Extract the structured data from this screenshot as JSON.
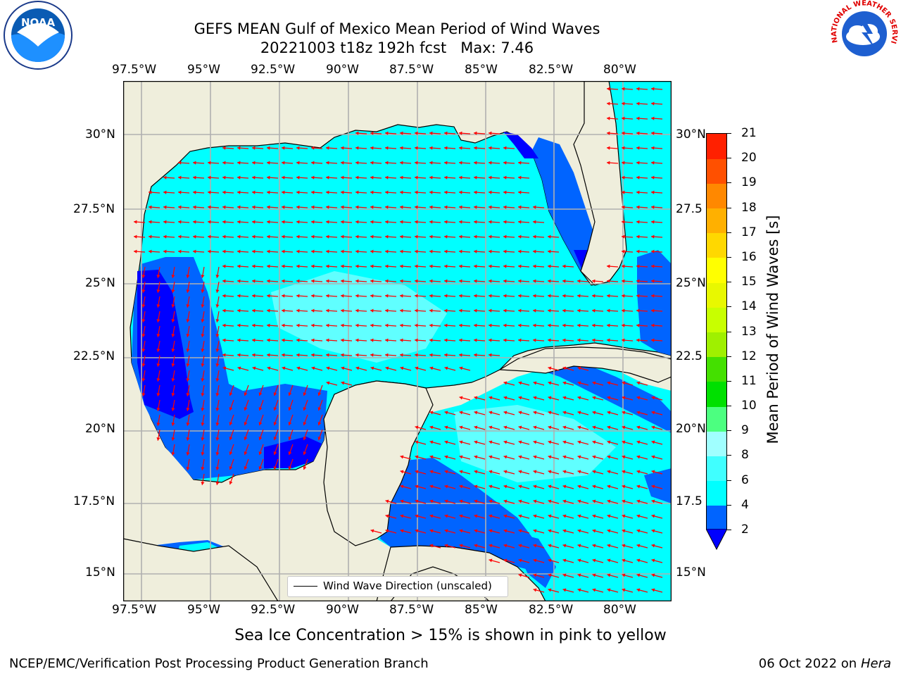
{
  "header": {
    "title_line1": "GEFS MEAN Gulf of Mexico Mean Period of Wind Waves",
    "title_line2": "20221003 t18z 192h fcst   Max: 7.46"
  },
  "logos": {
    "left": "NOAA",
    "right": "NATIONAL WEATHER SERVICE"
  },
  "map": {
    "lon_ticks_top": [
      "97.5°W",
      "95°W",
      "92.5°W",
      "90°W",
      "87.5°W",
      "85°W",
      "82.5°W",
      "80°W"
    ],
    "lon_ticks_bottom": [
      "97.5°W",
      "95°W",
      "92.5°W",
      "90°W",
      "87.5°W",
      "85°W",
      "82.5°W",
      "80°W"
    ],
    "lat_ticks_left": [
      "30°N",
      "27.5°N",
      "25°N",
      "22.5°N",
      "20°N",
      "17.5°N",
      "15°N"
    ],
    "lat_ticks_right": [
      "30°N",
      "27.5",
      "25°N",
      "22.5",
      "20°N",
      "17.5",
      "15°N"
    ],
    "legend_label": "Wind Wave Direction (unscaled)",
    "arrow_color": "#ff0000",
    "land_color": "#efeedc",
    "ocean_color": "#00ffff"
  },
  "colorbar": {
    "label": "Mean Period of Wind Waves [s]",
    "levels": [
      "2",
      "4",
      "6",
      "8",
      "9",
      "10",
      "11",
      "12",
      "13",
      "14",
      "15",
      "16",
      "17",
      "18",
      "19",
      "20",
      "21"
    ],
    "colors": [
      "#0064ff",
      "#00ffff",
      "#40ffff",
      "#a0ffff",
      "#4cff80",
      "#00e000",
      "#44e000",
      "#9ff000",
      "#c8ff00",
      "#e8f800",
      "#ffff00",
      "#ffd800",
      "#ffb000",
      "#ff8800",
      "#ff5000",
      "#ff2000"
    ],
    "extend_color": "#0000ff"
  },
  "footer": {
    "note": "Sea Ice Concentration > 15% is shown in pink to yellow",
    "credit_left": "NCEP/EMC/Verification Post Processing Product Generation Branch",
    "credit_date": "06 Oct 2022 on ",
    "credit_host": "Hera"
  }
}
